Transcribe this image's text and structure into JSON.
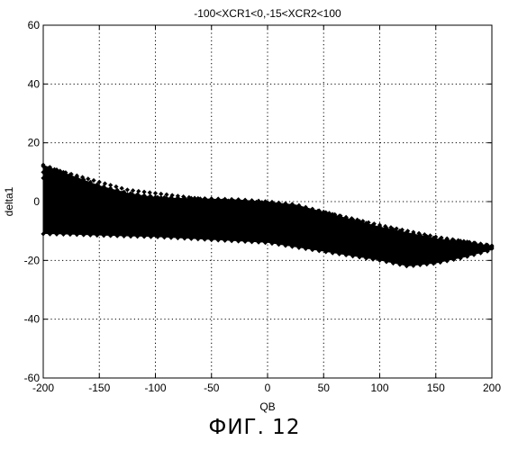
{
  "chart_data": {
    "type": "scatter",
    "title": "-100<XCR1<0,-15<XCR2<100",
    "xlabel": "QB",
    "ylabel": "delta1",
    "xlim": [
      -200,
      200
    ],
    "ylim": [
      -60,
      60
    ],
    "xticks": [
      -200,
      -150,
      -100,
      -50,
      0,
      50,
      100,
      150,
      200
    ],
    "yticks": [
      -60,
      -40,
      -20,
      0,
      20,
      40,
      60
    ],
    "grid": true,
    "marker": "diamond",
    "color": "#000000",
    "x": [
      -200,
      -175,
      -150,
      -125,
      -100,
      -75,
      -50,
      -25,
      0,
      25,
      50,
      75,
      100,
      125,
      150,
      175,
      200
    ],
    "envelope_upper": [
      12.5,
      9,
      5.5,
      3,
      1.5,
      1.2,
      1,
      0.7,
      0,
      -1,
      -3.5,
      -6,
      -8.5,
      -10.5,
      -12.5,
      -13.5,
      -15
    ],
    "envelope_lower": [
      -11,
      -11.2,
      -11.5,
      -11.8,
      -12,
      -12.5,
      -13,
      -13.5,
      -14,
      -15.5,
      -17,
      -18.5,
      -20,
      -22,
      -21,
      -19,
      -16.5
    ],
    "upper_curves": [
      {
        "x": [
          -200,
          -125,
          -50,
          0,
          50,
          100,
          150,
          200
        ],
        "y": [
          12,
          4,
          0.5,
          -0.3,
          -3.5,
          -8,
          -12,
          -15
        ]
      },
      {
        "x": [
          -200,
          -125,
          -60,
          0,
          50,
          100,
          150,
          200
        ],
        "y": [
          10,
          2.5,
          0,
          -1,
          -4.5,
          -9,
          -13,
          -15.5
        ]
      },
      {
        "x": [
          -200,
          -130,
          -70,
          -10,
          40,
          100,
          150,
          200
        ],
        "y": [
          8,
          2,
          0.5,
          -1.5,
          -5,
          -10,
          -14,
          -16
        ]
      }
    ]
  },
  "figure": {
    "caption": "ФИГ. 12"
  }
}
